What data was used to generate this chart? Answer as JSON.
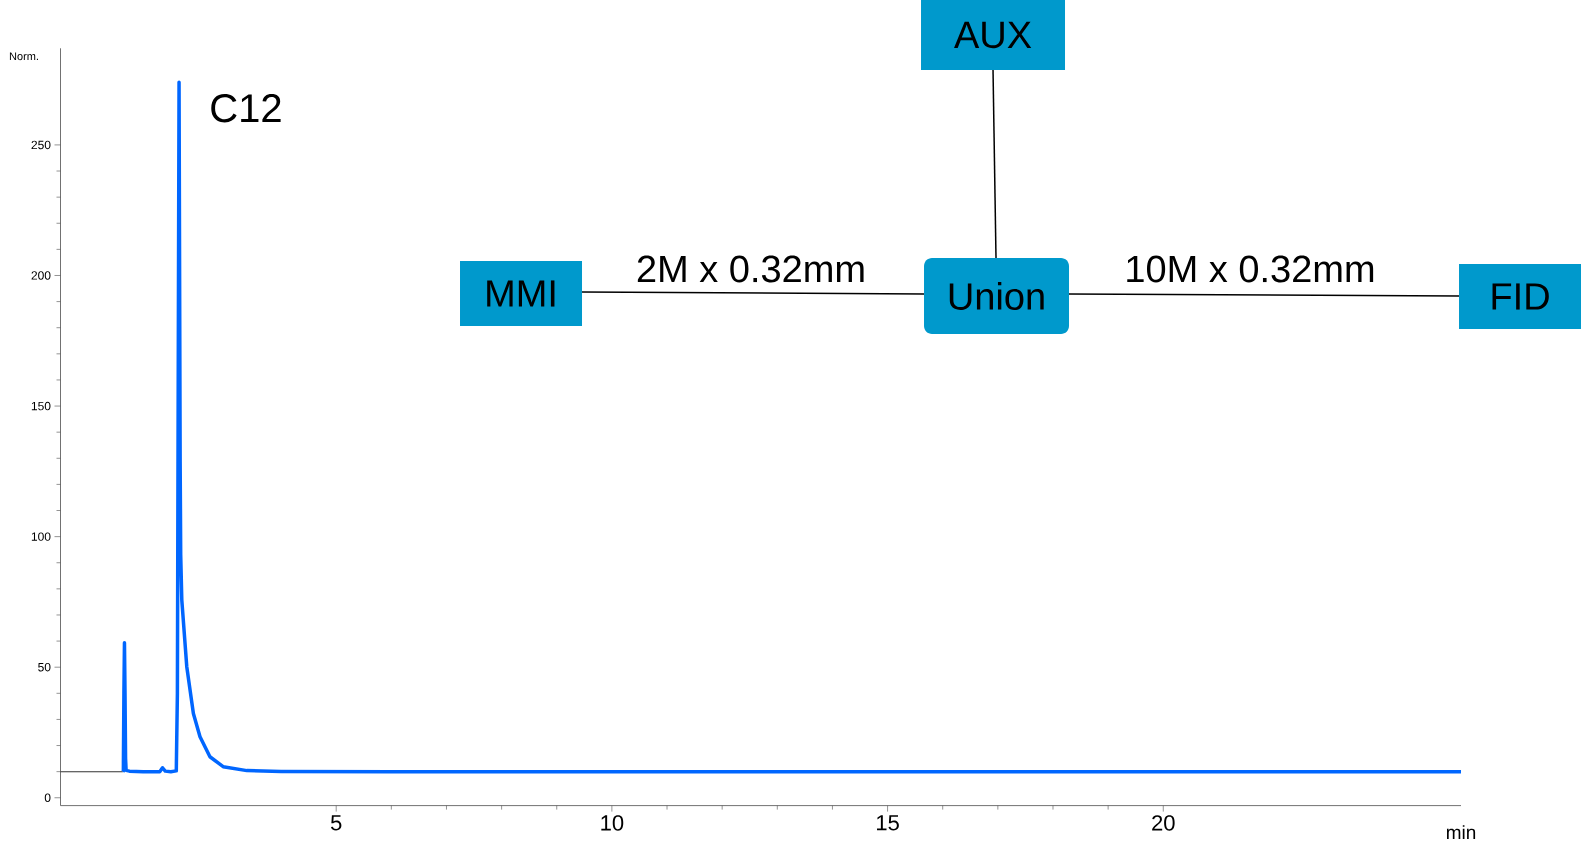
{
  "chart_data": {
    "type": "line",
    "xlabel": "min",
    "ylabel": "Norm.",
    "xlim": [
      0,
      25.4
    ],
    "ylim": [
      -3,
      287
    ],
    "xticks": [
      5,
      10,
      15,
      20
    ],
    "yticks": [
      0,
      50,
      100,
      150,
      200,
      250
    ],
    "series": [
      {
        "color": "#333333",
        "x": [
          0,
          1.13
        ],
        "values": [
          10,
          10
        ]
      },
      {
        "color": "#0066ff",
        "x": [
          1.13,
          1.14,
          1.15,
          1.16,
          1.17,
          1.18,
          1.19,
          1.25,
          1.5,
          1.8,
          1.85,
          1.9,
          2.0,
          2.1,
          2.12,
          2.14,
          2.15,
          2.16,
          2.17,
          2.18,
          2.2,
          2.29,
          2.41,
          2.53,
          2.71,
          2.95,
          3.38,
          4,
          6,
          10,
          15,
          20,
          25.4
        ],
        "values": [
          10,
          10.3,
          40,
          59.4,
          40,
          15,
          10.5,
          10.2,
          10,
          10,
          11.5,
          10.2,
          10,
          10.3,
          40,
          200,
          274,
          200,
          128.7,
          93,
          75.7,
          50.2,
          32.3,
          23.4,
          15.7,
          11.9,
          10.4,
          10.1,
          10,
          10,
          10,
          10,
          10
        ]
      }
    ],
    "annotations": [
      {
        "text": "C12",
        "x": 2.15,
        "y": 274
      },
      "AUX",
      "MMI",
      "2M x 0.32mm",
      "Union",
      "10M x 0.32mm",
      "FID"
    ]
  }
}
